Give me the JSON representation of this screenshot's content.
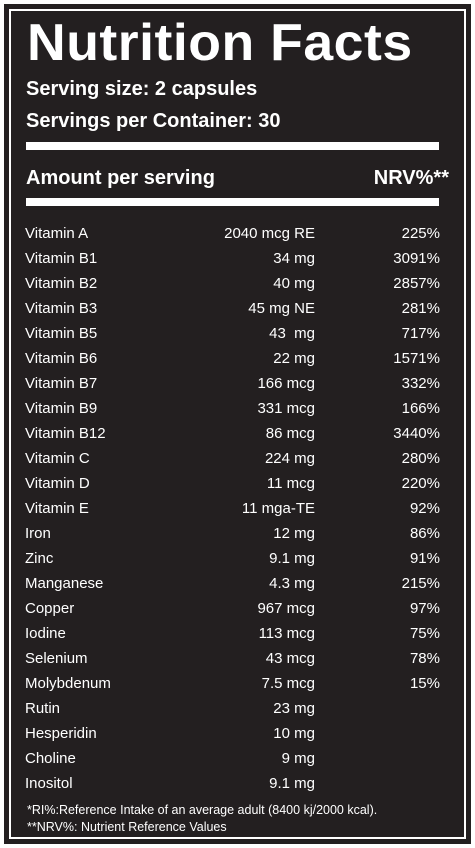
{
  "label": {
    "title": "Nutrition Facts",
    "serving_size": "Serving size: 2 capsules",
    "servings_per_container": "Servings per Container: 30",
    "amount_header": "Amount per serving",
    "nrv_header": "NRV%**"
  },
  "nutrients": [
    {
      "name": "Vitamin A",
      "amount": "2040 mcg RE",
      "nrv": "225%"
    },
    {
      "name": "Vitamin B1",
      "amount": "34 mg",
      "nrv": "3091%"
    },
    {
      "name": "Vitamin B2",
      "amount": "40 mg",
      "nrv": "2857%"
    },
    {
      "name": "Vitamin B3",
      "amount": "45 mg NE",
      "nrv": "281%"
    },
    {
      "name": "Vitamin B5",
      "amount": "43  mg",
      "nrv": "717%"
    },
    {
      "name": "Vitamin B6",
      "amount": "22 mg",
      "nrv": "1571%"
    },
    {
      "name": "Vitamin B7",
      "amount": "166 mcg",
      "nrv": "332%"
    },
    {
      "name": "Vitamin B9",
      "amount": "331 mcg",
      "nrv": "166%"
    },
    {
      "name": "Vitamin B12",
      "amount": "86 mcg",
      "nrv": "3440%"
    },
    {
      "name": "Vitamin C",
      "amount": "224 mg",
      "nrv": "280%"
    },
    {
      "name": "Vitamin D",
      "amount": "11 mcg",
      "nrv": "220%"
    },
    {
      "name": "Vitamin E",
      "amount": "11 mga-TE",
      "nrv": "92%"
    },
    {
      "name": "Iron",
      "amount": "12 mg",
      "nrv": "86%"
    },
    {
      "name": "Zinc",
      "amount": "9.1 mg",
      "nrv": "91%"
    },
    {
      "name": "Manganese",
      "amount": "4.3 mg",
      "nrv": "215%"
    },
    {
      "name": "Copper",
      "amount": "967 mcg",
      "nrv": "97%"
    },
    {
      "name": "Iodine",
      "amount": "113 mcg",
      "nrv": "75%"
    },
    {
      "name": "Selenium",
      "amount": "43 mcg",
      "nrv": "78%"
    },
    {
      "name": "Molybdenum",
      "amount": "7.5 mcg",
      "nrv": "15%"
    },
    {
      "name": "Rutin",
      "amount": "23 mg",
      "nrv": ""
    },
    {
      "name": "Hesperidin",
      "amount": "10 mg",
      "nrv": ""
    },
    {
      "name": "Choline",
      "amount": "9 mg",
      "nrv": ""
    },
    {
      "name": "Inositol",
      "amount": "9.1 mg",
      "nrv": ""
    }
  ],
  "footnotes": {
    "ri": "*RI%:Reference Intake of an average adult (8400 kj/2000 kcal).",
    "nrv": "**NRV%: Nutrient Reference Values"
  }
}
